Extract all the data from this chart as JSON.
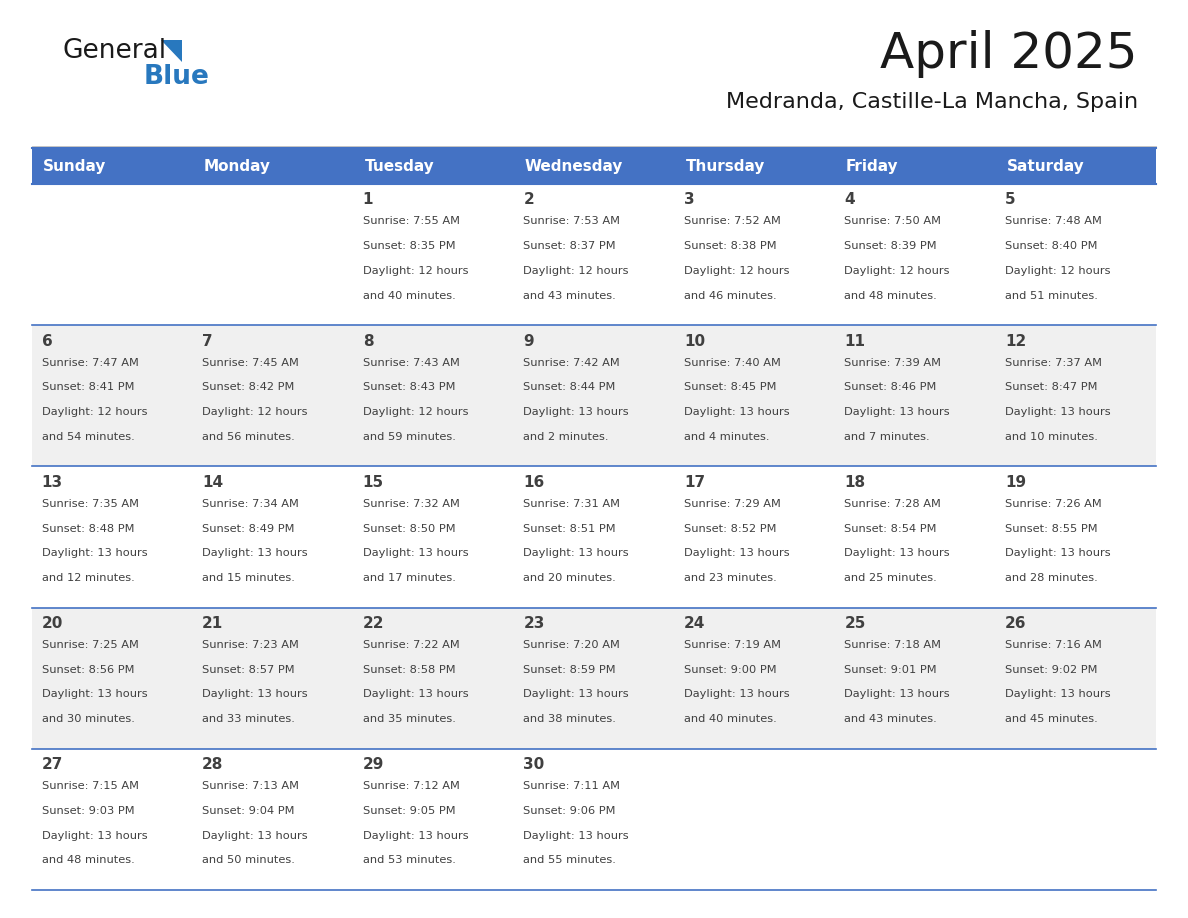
{
  "title": "April 2025",
  "subtitle": "Medranda, Castille-La Mancha, Spain",
  "header_bg_color": "#4472C4",
  "header_text_color": "#FFFFFF",
  "days_of_week": [
    "Sunday",
    "Monday",
    "Tuesday",
    "Wednesday",
    "Thursday",
    "Friday",
    "Saturday"
  ],
  "row_colors": [
    "#FFFFFF",
    "#F0F0F0"
  ],
  "border_color": "#4472C4",
  "text_color": "#404040",
  "cal_data": [
    [
      {
        "day": "",
        "info": ""
      },
      {
        "day": "",
        "info": ""
      },
      {
        "day": "1",
        "info": "Sunrise: 7:55 AM\nSunset: 8:35 PM\nDaylight: 12 hours\nand 40 minutes."
      },
      {
        "day": "2",
        "info": "Sunrise: 7:53 AM\nSunset: 8:37 PM\nDaylight: 12 hours\nand 43 minutes."
      },
      {
        "day": "3",
        "info": "Sunrise: 7:52 AM\nSunset: 8:38 PM\nDaylight: 12 hours\nand 46 minutes."
      },
      {
        "day": "4",
        "info": "Sunrise: 7:50 AM\nSunset: 8:39 PM\nDaylight: 12 hours\nand 48 minutes."
      },
      {
        "day": "5",
        "info": "Sunrise: 7:48 AM\nSunset: 8:40 PM\nDaylight: 12 hours\nand 51 minutes."
      }
    ],
    [
      {
        "day": "6",
        "info": "Sunrise: 7:47 AM\nSunset: 8:41 PM\nDaylight: 12 hours\nand 54 minutes."
      },
      {
        "day": "7",
        "info": "Sunrise: 7:45 AM\nSunset: 8:42 PM\nDaylight: 12 hours\nand 56 minutes."
      },
      {
        "day": "8",
        "info": "Sunrise: 7:43 AM\nSunset: 8:43 PM\nDaylight: 12 hours\nand 59 minutes."
      },
      {
        "day": "9",
        "info": "Sunrise: 7:42 AM\nSunset: 8:44 PM\nDaylight: 13 hours\nand 2 minutes."
      },
      {
        "day": "10",
        "info": "Sunrise: 7:40 AM\nSunset: 8:45 PM\nDaylight: 13 hours\nand 4 minutes."
      },
      {
        "day": "11",
        "info": "Sunrise: 7:39 AM\nSunset: 8:46 PM\nDaylight: 13 hours\nand 7 minutes."
      },
      {
        "day": "12",
        "info": "Sunrise: 7:37 AM\nSunset: 8:47 PM\nDaylight: 13 hours\nand 10 minutes."
      }
    ],
    [
      {
        "day": "13",
        "info": "Sunrise: 7:35 AM\nSunset: 8:48 PM\nDaylight: 13 hours\nand 12 minutes."
      },
      {
        "day": "14",
        "info": "Sunrise: 7:34 AM\nSunset: 8:49 PM\nDaylight: 13 hours\nand 15 minutes."
      },
      {
        "day": "15",
        "info": "Sunrise: 7:32 AM\nSunset: 8:50 PM\nDaylight: 13 hours\nand 17 minutes."
      },
      {
        "day": "16",
        "info": "Sunrise: 7:31 AM\nSunset: 8:51 PM\nDaylight: 13 hours\nand 20 minutes."
      },
      {
        "day": "17",
        "info": "Sunrise: 7:29 AM\nSunset: 8:52 PM\nDaylight: 13 hours\nand 23 minutes."
      },
      {
        "day": "18",
        "info": "Sunrise: 7:28 AM\nSunset: 8:54 PM\nDaylight: 13 hours\nand 25 minutes."
      },
      {
        "day": "19",
        "info": "Sunrise: 7:26 AM\nSunset: 8:55 PM\nDaylight: 13 hours\nand 28 minutes."
      }
    ],
    [
      {
        "day": "20",
        "info": "Sunrise: 7:25 AM\nSunset: 8:56 PM\nDaylight: 13 hours\nand 30 minutes."
      },
      {
        "day": "21",
        "info": "Sunrise: 7:23 AM\nSunset: 8:57 PM\nDaylight: 13 hours\nand 33 minutes."
      },
      {
        "day": "22",
        "info": "Sunrise: 7:22 AM\nSunset: 8:58 PM\nDaylight: 13 hours\nand 35 minutes."
      },
      {
        "day": "23",
        "info": "Sunrise: 7:20 AM\nSunset: 8:59 PM\nDaylight: 13 hours\nand 38 minutes."
      },
      {
        "day": "24",
        "info": "Sunrise: 7:19 AM\nSunset: 9:00 PM\nDaylight: 13 hours\nand 40 minutes."
      },
      {
        "day": "25",
        "info": "Sunrise: 7:18 AM\nSunset: 9:01 PM\nDaylight: 13 hours\nand 43 minutes."
      },
      {
        "day": "26",
        "info": "Sunrise: 7:16 AM\nSunset: 9:02 PM\nDaylight: 13 hours\nand 45 minutes."
      }
    ],
    [
      {
        "day": "27",
        "info": "Sunrise: 7:15 AM\nSunset: 9:03 PM\nDaylight: 13 hours\nand 48 minutes."
      },
      {
        "day": "28",
        "info": "Sunrise: 7:13 AM\nSunset: 9:04 PM\nDaylight: 13 hours\nand 50 minutes."
      },
      {
        "day": "29",
        "info": "Sunrise: 7:12 AM\nSunset: 9:05 PM\nDaylight: 13 hours\nand 53 minutes."
      },
      {
        "day": "30",
        "info": "Sunrise: 7:11 AM\nSunset: 9:06 PM\nDaylight: 13 hours\nand 55 minutes."
      },
      {
        "day": "",
        "info": ""
      },
      {
        "day": "",
        "info": ""
      },
      {
        "day": "",
        "info": ""
      }
    ]
  ],
  "logo_color_general": "#1a1a1a",
  "logo_color_blue": "#2878BE",
  "logo_triangle_color": "#2878BE"
}
